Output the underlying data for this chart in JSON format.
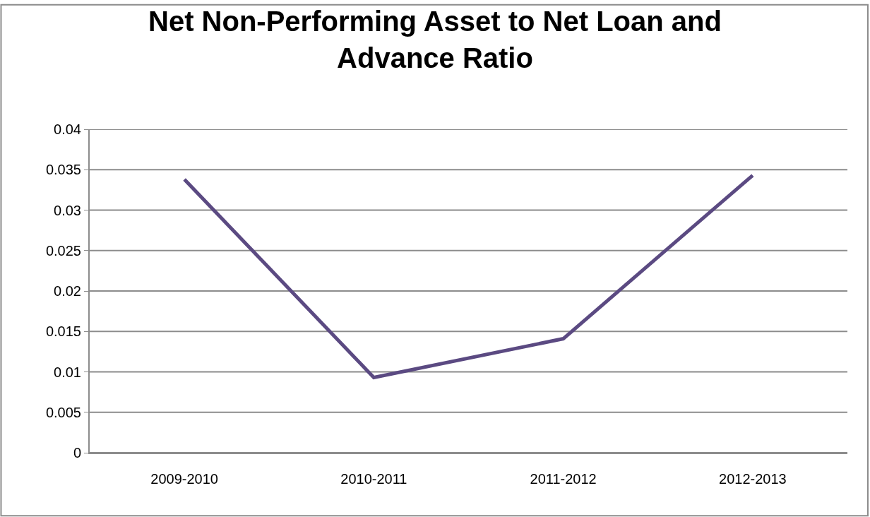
{
  "chart_data": {
    "type": "line",
    "title": "Net Non-Performing Asset to Net Loan and Advance Ratio",
    "categories": [
      "2009-2010",
      "2010-2011",
      "2011-2012",
      "2012-2013"
    ],
    "series": [
      {
        "color": "#5b4a82",
        "values": [
          0.0338,
          0.0093,
          0.0141,
          0.0343
        ]
      }
    ],
    "ylim": [
      0,
      0.04
    ],
    "yticks": [
      0,
      0.005,
      0.01,
      0.015,
      0.02,
      0.025,
      0.03,
      0.035,
      0.04
    ],
    "grid": "y",
    "marker": "none",
    "line_style": "solid"
  }
}
